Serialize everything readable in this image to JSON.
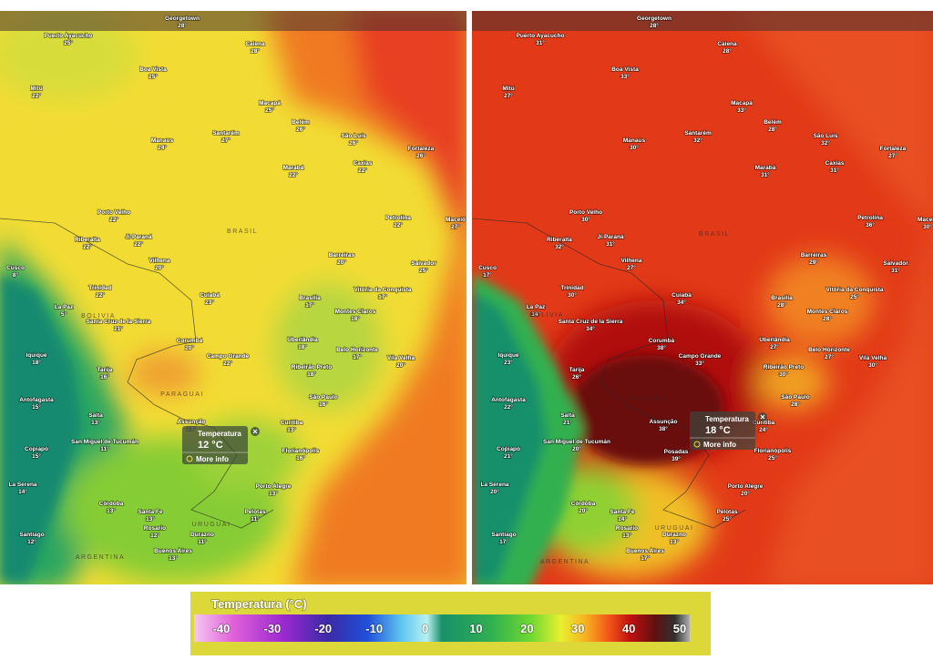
{
  "panels": [
    {
      "cities": [
        {
          "name": "Georgetown",
          "temp": "28°"
        },
        {
          "name": "Puerto Ayacucho",
          "temp": "25°"
        },
        {
          "name": "Boa Vista",
          "temp": "25°"
        },
        {
          "name": "Caiena",
          "temp": "28°"
        },
        {
          "name": "Mitú",
          "temp": "22°"
        },
        {
          "name": "Macapá",
          "temp": "25°"
        },
        {
          "name": "Belém",
          "temp": "26°"
        },
        {
          "name": "Santarém",
          "temp": "27°"
        },
        {
          "name": "Manaus",
          "temp": "24°"
        },
        {
          "name": "São Luís",
          "temp": "26°"
        },
        {
          "name": "Fortaleza",
          "temp": "26°"
        },
        {
          "name": "Marabá",
          "temp": "22°"
        },
        {
          "name": "Caxias",
          "temp": "22°"
        },
        {
          "name": "Porto Velho",
          "temp": "22°"
        },
        {
          "name": "Ji-Paraná",
          "temp": "22°"
        },
        {
          "name": "Riberalta",
          "temp": "22°"
        },
        {
          "name": "Petrolina",
          "temp": "22°"
        },
        {
          "name": "Maceió",
          "temp": "27°"
        },
        {
          "name": "Barreiras",
          "temp": "20°"
        },
        {
          "name": "Salvador",
          "temp": "25°"
        },
        {
          "name": "Vilhena",
          "temp": "20°"
        },
        {
          "name": "Cusco",
          "temp": "8°"
        },
        {
          "name": "Trinidad",
          "temp": "22°"
        },
        {
          "name": "Cuiabá",
          "temp": "23°"
        },
        {
          "name": "Brasília",
          "temp": "17°"
        },
        {
          "name": "Vitória da Conquista",
          "temp": "17°"
        },
        {
          "name": "La Paz",
          "temp": "5°"
        },
        {
          "name": "Santa Cruz de la Sierra",
          "temp": "21°"
        },
        {
          "name": "Montes Claros",
          "temp": "18°"
        },
        {
          "name": "Corumbá",
          "temp": "20°"
        },
        {
          "name": "Uberlândia",
          "temp": "18°"
        },
        {
          "name": "Belo Horizonte",
          "temp": "17°"
        },
        {
          "name": "Campo Grande",
          "temp": "22°"
        },
        {
          "name": "Ribeirão Preto",
          "temp": "18°"
        },
        {
          "name": "Vila Velha",
          "temp": "20°"
        },
        {
          "name": "Iquique",
          "temp": "18°"
        },
        {
          "name": "Tarija",
          "temp": "16°"
        },
        {
          "name": "São Paulo",
          "temp": "16°"
        },
        {
          "name": "Antofagasta",
          "temp": "15°"
        },
        {
          "name": "Salta",
          "temp": "13°"
        },
        {
          "name": "Assunção",
          "temp": "13°"
        },
        {
          "name": "Curitiba",
          "temp": "13°"
        },
        {
          "name": "San Miguel de Tucumán",
          "temp": "11°"
        },
        {
          "name": "Copiapó",
          "temp": "15°"
        },
        {
          "name": "Florianópolis",
          "temp": "16°"
        },
        {
          "name": "La Serena",
          "temp": "14°"
        },
        {
          "name": "Porto Alegre",
          "temp": "13°"
        },
        {
          "name": "Córdoba",
          "temp": "13°"
        },
        {
          "name": "Santa Fe",
          "temp": "13°"
        },
        {
          "name": "Pelotas",
          "temp": "11°"
        },
        {
          "name": "Rosario",
          "temp": "12°"
        },
        {
          "name": "Santiago",
          "temp": "12°"
        },
        {
          "name": "Durazno",
          "temp": "11°"
        },
        {
          "name": "Buenos Aires",
          "temp": "13°"
        }
      ],
      "popup": {
        "label": "Temperatura",
        "value": "12 °C",
        "link": "More info"
      }
    },
    {
      "cities": [
        {
          "name": "Georgetown",
          "temp": "28°"
        },
        {
          "name": "Puerto Ayacucho",
          "temp": "31°"
        },
        {
          "name": "Boa Vista",
          "temp": "33°"
        },
        {
          "name": "Caiena",
          "temp": "28°"
        },
        {
          "name": "Mitú",
          "temp": "27°"
        },
        {
          "name": "Macapá",
          "temp": "33°"
        },
        {
          "name": "Belém",
          "temp": "28°"
        },
        {
          "name": "Santarém",
          "temp": "32°"
        },
        {
          "name": "Manaus",
          "temp": "30°"
        },
        {
          "name": "São Luís",
          "temp": "32°"
        },
        {
          "name": "Fortaleza",
          "temp": "27°"
        },
        {
          "name": "Marabá",
          "temp": "31°"
        },
        {
          "name": "Caxias",
          "temp": "31°"
        },
        {
          "name": "Porto Velho",
          "temp": "30°"
        },
        {
          "name": "Ji-Paraná",
          "temp": "31°"
        },
        {
          "name": "Riberalta",
          "temp": "32°"
        },
        {
          "name": "Petrolina",
          "temp": "36°"
        },
        {
          "name": "Maceió",
          "temp": "30°"
        },
        {
          "name": "Barreiras",
          "temp": "29°"
        },
        {
          "name": "Salvador",
          "temp": "31°"
        },
        {
          "name": "Vilhena",
          "temp": "27°"
        },
        {
          "name": "Cusco",
          "temp": "17°"
        },
        {
          "name": "Trinidad",
          "temp": "30°"
        },
        {
          "name": "Cuiabá",
          "temp": "34°"
        },
        {
          "name": "Brasília",
          "temp": "28°"
        },
        {
          "name": "Vitória da Conquista",
          "temp": "25°"
        },
        {
          "name": "La Paz",
          "temp": "14°"
        },
        {
          "name": "Santa Cruz de la Sierra",
          "temp": "34°"
        },
        {
          "name": "Montes Claros",
          "temp": "28°"
        },
        {
          "name": "Corumbá",
          "temp": "38°"
        },
        {
          "name": "Uberlândia",
          "temp": "27°"
        },
        {
          "name": "Belo Horizonte",
          "temp": "27°"
        },
        {
          "name": "Campo Grande",
          "temp": "33°"
        },
        {
          "name": "Ribeirão Preto",
          "temp": "30°"
        },
        {
          "name": "Vila Velha",
          "temp": "30°"
        },
        {
          "name": "Iquique",
          "temp": "23°"
        },
        {
          "name": "Tarija",
          "temp": "26°"
        },
        {
          "name": "São Paulo",
          "temp": "28°"
        },
        {
          "name": "Antofagasta",
          "temp": "22°"
        },
        {
          "name": "Salta",
          "temp": "21°"
        },
        {
          "name": "Assunção",
          "temp": "38°"
        },
        {
          "name": "Curitiba",
          "temp": "24°"
        },
        {
          "name": "San Miguel de Tucumán",
          "temp": "20°"
        },
        {
          "name": "Copiapó",
          "temp": "21°"
        },
        {
          "name": "Florianópolis",
          "temp": "25°"
        },
        {
          "name": "La Serena",
          "temp": "20°"
        },
        {
          "name": "Porto Alegre",
          "temp": "20°"
        },
        {
          "name": "Córdoba",
          "temp": "20°"
        },
        {
          "name": "Santa Fe",
          "temp": "14°"
        },
        {
          "name": "Pelotas",
          "temp": "25°"
        },
        {
          "name": "Rosario",
          "temp": "13°"
        },
        {
          "name": "Santiago",
          "temp": "17°"
        },
        {
          "name": "Durazno",
          "temp": "13°"
        },
        {
          "name": "Buenos Aires",
          "temp": "17°"
        },
        {
          "name": "Posadas",
          "temp": "39°"
        }
      ],
      "popup": {
        "label": "Temperatura",
        "value": "18 °C",
        "link": "More info"
      }
    }
  ],
  "countries": [
    "BRASIL",
    "BOLIVIA",
    "PARAGUAI",
    "URUGUAI",
    "ARGENTINA"
  ],
  "legend": {
    "title": "Temperatura (°C)",
    "ticks": [
      "-40",
      "-30",
      "-20",
      "-10",
      "0",
      "10",
      "20",
      "30",
      "40",
      "50"
    ]
  }
}
